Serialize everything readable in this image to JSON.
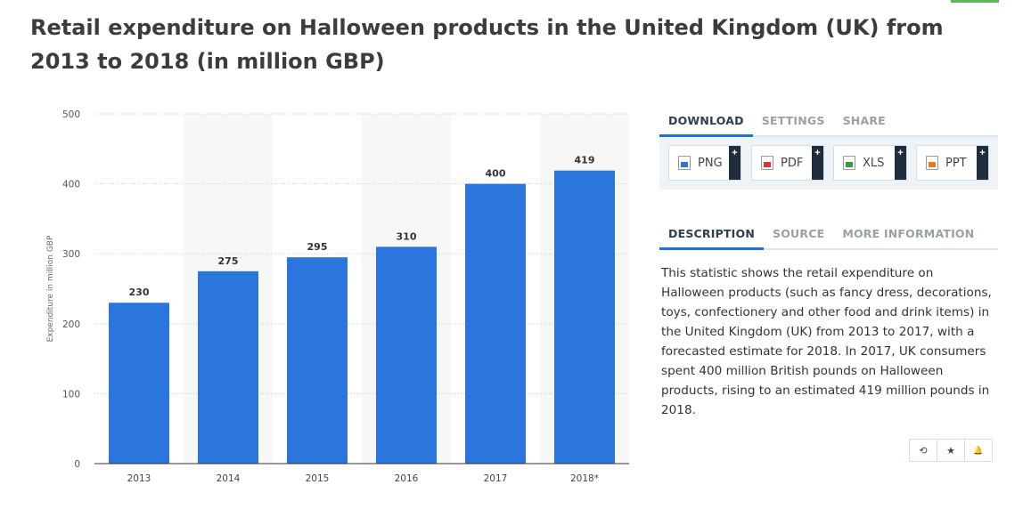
{
  "title": "Retail expenditure on Halloween products in the United Kingdom (UK) from 2013 to 2018 (in million GBP)",
  "chart_data": {
    "type": "bar",
    "categories": [
      "2013",
      "2014",
      "2015",
      "2016",
      "2017",
      "2018*"
    ],
    "values": [
      230,
      275,
      295,
      310,
      400,
      419
    ],
    "ylabel": "Expenditure in million GBP",
    "ylim": [
      0,
      500
    ],
    "yticks": [
      0,
      100,
      200,
      300,
      400,
      500
    ],
    "grid": true,
    "bar_color": "#2a76dd"
  },
  "download": {
    "tabs": [
      "DOWNLOAD",
      "SETTINGS",
      "SHARE"
    ],
    "buttons": [
      {
        "label": "PNG",
        "icon": "png-file-icon"
      },
      {
        "label": "PDF",
        "icon": "pdf-file-icon"
      },
      {
        "label": "XLS",
        "icon": "xls-file-icon"
      },
      {
        "label": "PPT",
        "icon": "ppt-file-icon"
      }
    ],
    "plus": "+"
  },
  "info": {
    "tabs": [
      "DESCRIPTION",
      "SOURCE",
      "MORE INFORMATION"
    ],
    "description": "This statistic shows the retail expenditure on Halloween products (such as fancy dress, decorations, toys, confectionery and other food and drink items) in the United Kingdom (UK) from 2013 to 2017, with a forecasted estimate for 2018. In 2017, UK consumers spent 400 million British pounds on Halloween products, rising to an estimated 419 million pounds in 2018."
  },
  "tools": [
    {
      "icon": "history-icon",
      "glyph": "⟲"
    },
    {
      "icon": "star-icon",
      "glyph": "★"
    },
    {
      "icon": "bell-icon",
      "glyph": "🔔"
    }
  ],
  "colors": {
    "accent": "#1f6fd6",
    "bar": "#2a76dd",
    "button_dark": "#1f2d3d"
  }
}
